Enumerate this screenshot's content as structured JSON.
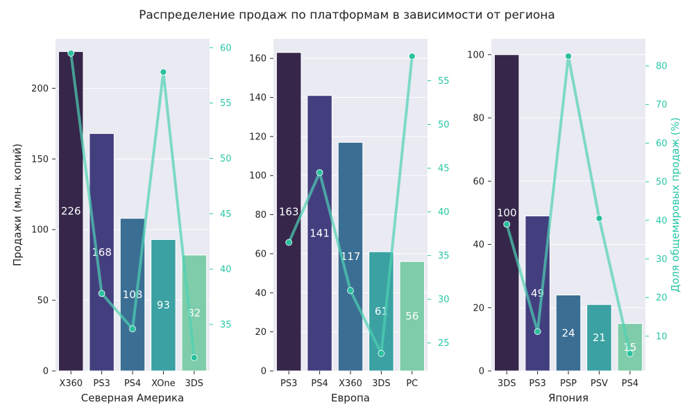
{
  "suptitle": "Распределение продаж по платформам в зависимости от региона",
  "colors": {
    "panel_bg": "#eaeaf2",
    "grid": "#ffffff",
    "line": "#4fd1b4",
    "point": "#2cc0a0",
    "right_axis": "#26c6a6",
    "bar_palette": [
      "#35264a",
      "#433f7f",
      "#3b6e93",
      "#3ba1a2",
      "#7ecca9"
    ]
  },
  "chart_data": [
    {
      "type": "bar",
      "xlabel": "Северная Америка",
      "ylabel": "Продажи (млн. копий)",
      "y2label": "",
      "categories": [
        "X360",
        "PS3",
        "PS4",
        "XOne",
        "3DS"
      ],
      "values": [
        226,
        168,
        108,
        93,
        82
      ],
      "value_labels": [
        "226",
        "168",
        "108",
        "93",
        "82"
      ],
      "ylim": [
        0,
        235
      ],
      "yticks": [
        0,
        50,
        100,
        150,
        200
      ],
      "share_series": [
        59.5,
        37.8,
        34.6,
        57.8,
        32.0
      ],
      "y2lim": [
        30.8,
        60.8
      ],
      "y2ticks": [
        35,
        40,
        45,
        50,
        55,
        60
      ]
    },
    {
      "type": "bar",
      "xlabel": "Европа",
      "ylabel": "",
      "y2label": "",
      "categories": [
        "PS3",
        "PS4",
        "X360",
        "3DS",
        "PC"
      ],
      "values": [
        163,
        141,
        117,
        61,
        56
      ],
      "value_labels": [
        "163",
        "141",
        "117",
        "61",
        "56"
      ],
      "ylim": [
        0,
        170
      ],
      "yticks": [
        0,
        20,
        40,
        60,
        80,
        100,
        120,
        140,
        160
      ],
      "share_series": [
        36.5,
        44.5,
        31.0,
        23.8,
        57.8
      ],
      "y2lim": [
        21.8,
        59.8
      ],
      "y2ticks": [
        25,
        30,
        35,
        40,
        45,
        50,
        55
      ]
    },
    {
      "type": "bar",
      "xlabel": "Япония",
      "ylabel": "",
      "y2label": "Доля общемировых продаж (%)",
      "categories": [
        "3DS",
        "PS3",
        "PSP",
        "PSV",
        "PS4"
      ],
      "values": [
        100,
        49,
        24,
        21,
        15
      ],
      "value_labels": [
        "100",
        "49",
        "24",
        "21",
        "15"
      ],
      "ylim": [
        0,
        105
      ],
      "yticks": [
        0,
        20,
        40,
        60,
        80,
        100
      ],
      "share_series": [
        39.0,
        11.2,
        82.5,
        40.5,
        5.5
      ],
      "y2lim": [
        1.0,
        87.0
      ],
      "y2ticks": [
        10,
        20,
        30,
        40,
        50,
        60,
        70,
        80
      ]
    }
  ]
}
